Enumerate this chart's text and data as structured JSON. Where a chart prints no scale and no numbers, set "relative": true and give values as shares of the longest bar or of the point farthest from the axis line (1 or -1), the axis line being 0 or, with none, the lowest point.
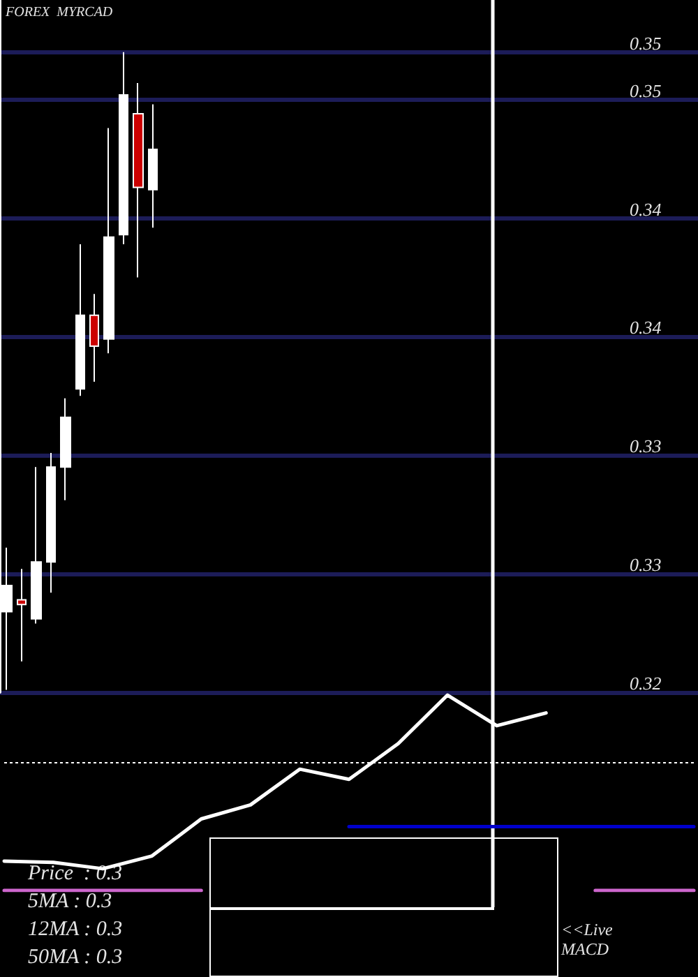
{
  "chart_data": [
    {
      "type": "candlestick",
      "title": "FOREX  MYRCAD",
      "categories": [
        null,
        null,
        null,
        null,
        null,
        null,
        null,
        null,
        null,
        null,
        null,
        null,
        null,
        null,
        null,
        null,
        null,
        null,
        null,
        null,
        null,
        null,
        null,
        null,
        null,
        null,
        null,
        null,
        null,
        null,
        null,
        null,
        null,
        null,
        null,
        null,
        null,
        null,
        null,
        null,
        null,
        null,
        null,
        null,
        null,
        null,
        null,
        null
      ],
      "ohlc": [
        [
          0.3259,
          0.3286,
          0.3226,
          0.327
        ],
        [
          0.3264,
          0.3277,
          0.3238,
          0.3262
        ],
        [
          0.3256,
          0.332,
          0.3254,
          0.328
        ],
        [
          0.328,
          0.3326,
          0.3267,
          0.332
        ],
        [
          0.332,
          0.3349,
          0.3306,
          0.3341
        ],
        [
          0.3353,
          0.3414,
          0.335,
          0.3384
        ],
        [
          0.3384,
          0.3393,
          0.3356,
          0.3371
        ],
        [
          0.3374,
          0.3463,
          0.3368,
          0.3417
        ],
        [
          0.3418,
          0.3495,
          0.3414,
          0.3477
        ],
        [
          0.3469,
          0.3482,
          0.34,
          0.3438
        ],
        [
          0.3437,
          0.3473,
          0.3421,
          0.3454
        ],
        null,
        null,
        null,
        null,
        null,
        null,
        null,
        null,
        null,
        null,
        null,
        null,
        null,
        null,
        null,
        null,
        null,
        null,
        null,
        null,
        null,
        null,
        null,
        null,
        null,
        null,
        null,
        null,
        null,
        null,
        null,
        null,
        null,
        null,
        null,
        null,
        null
      ],
      "colors": [
        "#ffffff",
        "#cc0000",
        "#ffffff",
        "#ffffff",
        "#ffffff",
        "#ffffff",
        "#cc0000",
        "#ffffff",
        "#ffffff",
        "#cc0000",
        "#ffffff",
        null,
        null,
        null,
        null,
        null,
        null,
        null,
        null,
        null,
        null,
        null,
        null,
        null,
        null,
        null,
        null,
        null,
        null,
        null,
        null,
        null,
        null,
        null,
        null,
        null,
        null,
        null,
        null,
        null,
        null,
        null,
        null,
        null,
        null,
        null,
        null,
        null
      ],
      "ylim": [
        0.3225,
        0.3517
      ],
      "yticks": [
        {
          "value": 0.3225,
          "label": "0.32"
        },
        {
          "value": 0.3275,
          "label": "0.33"
        },
        {
          "value": 0.3325,
          "label": "0.33"
        },
        {
          "value": 0.3375,
          "label": "0.34"
        },
        {
          "value": 0.3425,
          "label": "0.34"
        },
        {
          "value": 0.3475,
          "label": "0.35"
        },
        {
          "value": 0.3495,
          "label": "0.35"
        }
      ],
      "grid": "y",
      "tick_labels": "y",
      "annotations": [
        "Price  : 0.3",
        "5MA : 0.3",
        "12MA : 0.3",
        "50MA : 0.3"
      ]
    },
    {
      "type": "line",
      "relative": true,
      "categories": [
        null,
        null,
        null,
        null,
        null,
        null,
        null,
        null,
        null,
        null,
        null,
        null,
        null,
        null,
        null
      ],
      "series": [
        {
          "color": "#ffffff",
          "values": [
            -0.77,
            -0.78,
            -0.83,
            -0.73,
            -0.44,
            -0.33,
            -0.05,
            -0.13,
            0.15,
            0.53,
            0.29,
            0.39,
            null,
            null,
            null
          ]
        },
        {
          "color": "#0000cc",
          "values": [
            null,
            null,
            null,
            null,
            null,
            null,
            null,
            -0.5,
            -0.5,
            -0.5,
            -0.5,
            -0.5,
            -0.5,
            -0.5,
            -0.5
          ]
        },
        {
          "color": "#cc66cc",
          "values": [
            -1,
            -1,
            -1,
            -1,
            -1,
            null,
            null,
            null,
            null,
            null,
            null,
            null,
            -1,
            -1,
            -1
          ]
        }
      ],
      "ref_lines": [
        {
          "axis": "y",
          "value": 0,
          "color": "#ffffff",
          "line_style": "dotted"
        }
      ],
      "annotations": [
        "<<Live MACD"
      ]
    }
  ]
}
